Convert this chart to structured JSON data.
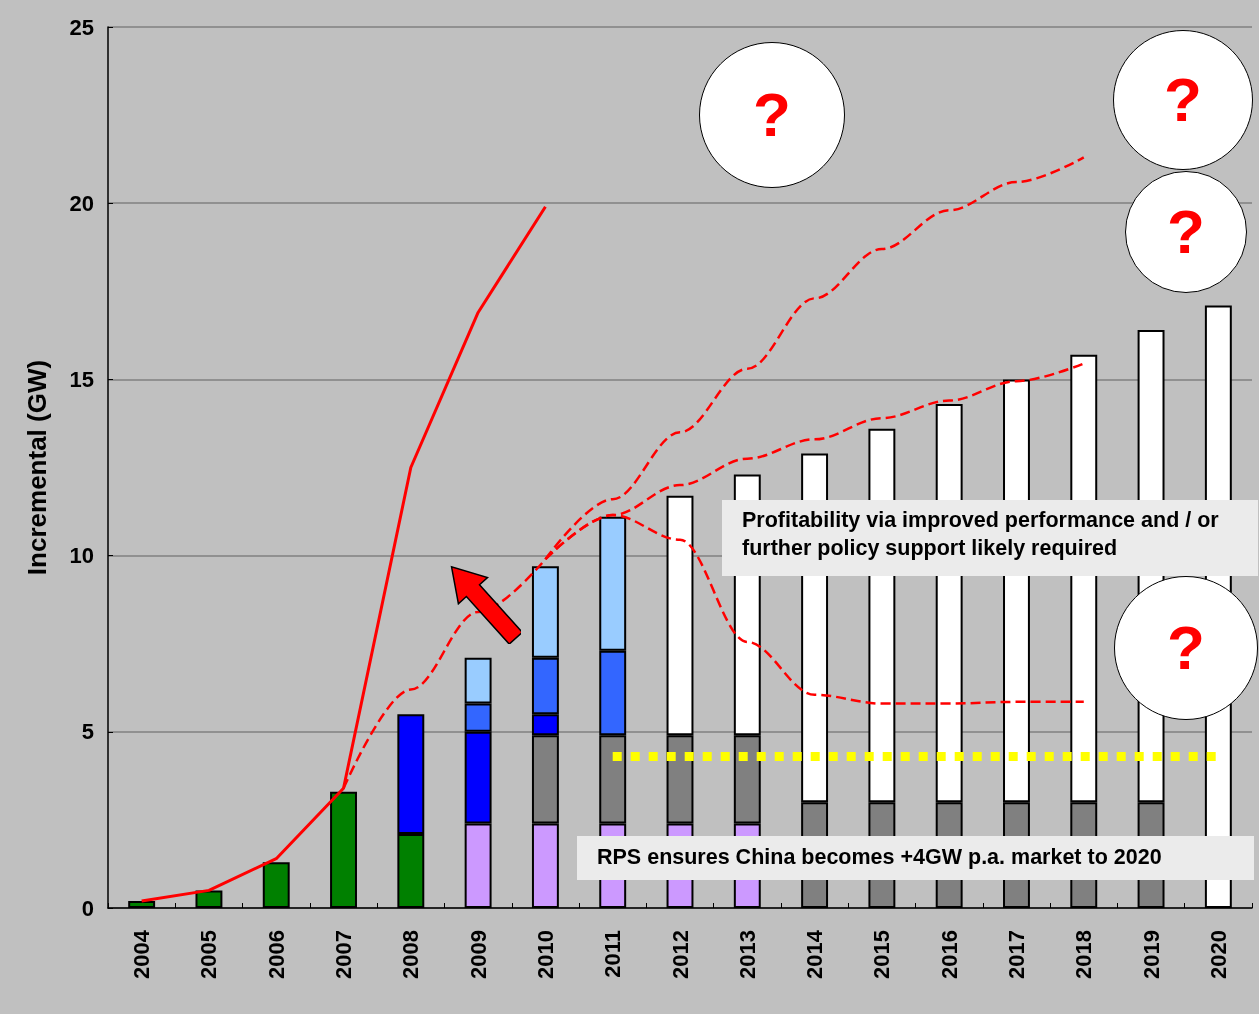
{
  "chart_data": {
    "type": "bar",
    "stacked": true,
    "ylabel": "Incremental (GW)",
    "categories": [
      "2004",
      "2005",
      "2006",
      "2007",
      "2008",
      "2009",
      "2010",
      "2011",
      "2012",
      "2013",
      "2014",
      "2015",
      "2016",
      "2017",
      "2018",
      "2019",
      "2020"
    ],
    "series": [
      {
        "color": "#008000",
        "values": [
          0.2,
          0.5,
          1.3,
          3.3,
          2.1,
          null,
          null,
          null,
          null,
          null,
          null,
          null,
          null,
          null,
          null,
          null,
          null
        ]
      },
      {
        "color": "#cc99ff",
        "values": [
          null,
          null,
          null,
          null,
          null,
          2.4,
          2.4,
          2.4,
          2.4,
          2.4,
          null,
          null,
          null,
          null,
          null,
          null,
          null
        ]
      },
      {
        "color": "#808080",
        "values": [
          null,
          null,
          null,
          null,
          null,
          null,
          2.5,
          2.5,
          2.5,
          2.5,
          3.0,
          3.0,
          3.0,
          3.0,
          3.0,
          3.0,
          null
        ]
      },
      {
        "color": "#0000ff",
        "values": [
          null,
          null,
          null,
          null,
          3.4,
          2.6,
          0.6,
          null,
          null,
          null,
          null,
          null,
          null,
          null,
          null,
          null,
          null
        ]
      },
      {
        "color": "#3366ff",
        "values": [
          null,
          null,
          null,
          null,
          null,
          0.8,
          1.6,
          2.4,
          null,
          null,
          null,
          null,
          null,
          null,
          null,
          null,
          null
        ]
      },
      {
        "color": "#99ccff",
        "values": [
          null,
          null,
          null,
          null,
          null,
          1.3,
          2.6,
          3.8,
          null,
          null,
          null,
          null,
          null,
          null,
          null,
          null,
          null
        ]
      },
      {
        "color": "#ffffff",
        "values": [
          null,
          null,
          null,
          null,
          null,
          null,
          null,
          null,
          6.8,
          7.4,
          9.9,
          10.6,
          11.3,
          12.0,
          12.7,
          13.4,
          17.1
        ]
      },
      {
        "type": "line",
        "color": "#ff0000",
        "line_style": "solid",
        "values": [
          0.2,
          0.5,
          1.4,
          3.4,
          12.5,
          16.9,
          19.9,
          null,
          null,
          null,
          null,
          null,
          null,
          null,
          null,
          null,
          null
        ]
      },
      {
        "type": "line",
        "color": "#ff0000",
        "line_style": "dashed",
        "values": [
          null,
          null,
          null,
          3.4,
          6.2,
          8.4,
          9.9,
          null,
          null,
          null,
          null,
          null,
          null,
          null,
          null,
          null,
          null
        ]
      },
      {
        "type": "line",
        "color": "#ff0000",
        "line_style": "dashed",
        "values": [
          null,
          null,
          null,
          null,
          null,
          null,
          9.9,
          11.6,
          13.5,
          15.3,
          17.3,
          18.7,
          19.8,
          20.6,
          21.3,
          null,
          null
        ]
      },
      {
        "type": "line",
        "color": "#ff0000",
        "line_style": "dashed",
        "values": [
          null,
          null,
          null,
          null,
          null,
          null,
          9.9,
          11.15,
          12.0,
          12.75,
          13.3,
          13.9,
          14.4,
          14.95,
          15.45,
          null,
          null
        ]
      },
      {
        "type": "line",
        "color": "#ff0000",
        "line_style": "dashed",
        "values": [
          null,
          null,
          null,
          null,
          null,
          null,
          9.9,
          11.15,
          10.45,
          7.55,
          6.05,
          5.8,
          5.8,
          5.85,
          5.85,
          null,
          null
        ]
      },
      {
        "type": "line",
        "color": "#ffff00",
        "line_style": "dotted",
        "values": [
          null,
          null,
          null,
          null,
          null,
          null,
          null,
          4.3,
          4.3,
          4.3,
          4.3,
          4.3,
          4.3,
          4.3,
          4.3,
          4.3,
          4.3
        ]
      }
    ],
    "ylim": [
      0,
      25
    ],
    "yticks": [
      0,
      5,
      10,
      15,
      20,
      25
    ],
    "grid": "y",
    "marker": "none",
    "annotations": [
      "?",
      "?",
      "?",
      "?",
      "Profitability via improved performance and / or further policy support likely required",
      "RPS ensures China becomes +4GW p.a. market to 2020"
    ]
  }
}
